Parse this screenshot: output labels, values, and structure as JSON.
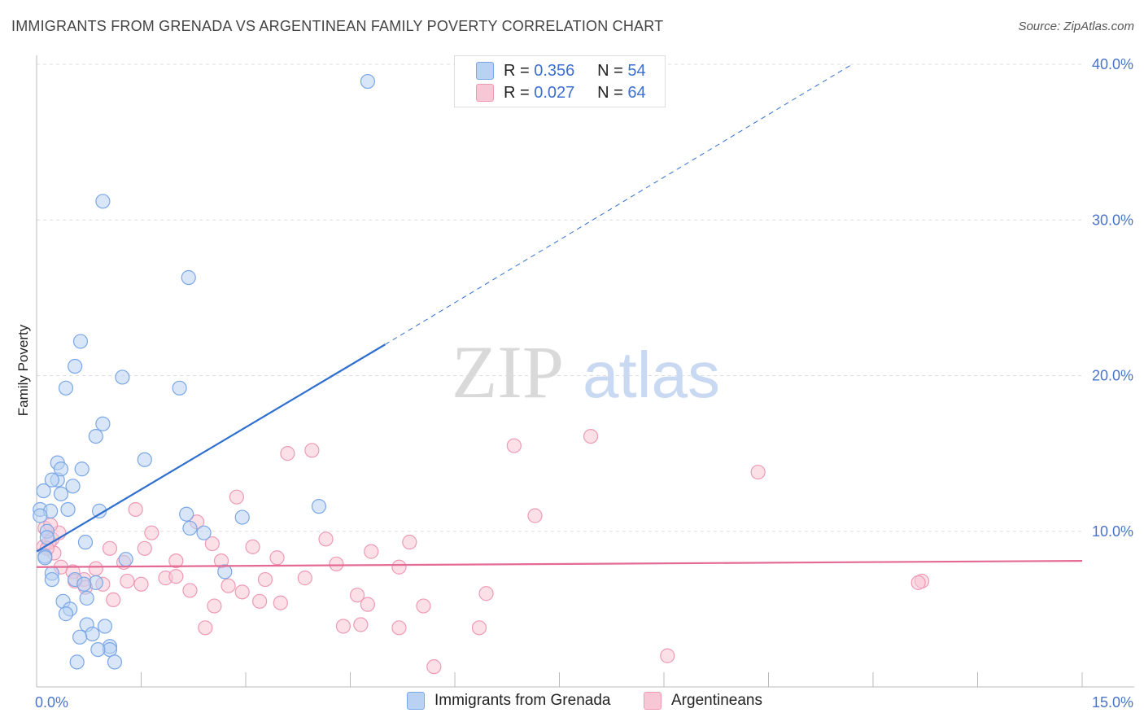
{
  "title": "IMMIGRANTS FROM GRENADA VS ARGENTINEAN FAMILY POVERTY CORRELATION CHART",
  "source": "Source: ZipAtlas.com",
  "watermark": {
    "zip": "ZIP",
    "atlas": "atlas"
  },
  "legend": {
    "r_label": "R =",
    "n_label": "N =",
    "series": [
      {
        "name": "Immigrants from Grenada",
        "r": "0.356",
        "n": "54",
        "color": "#7aa7e6",
        "fill": "#b9d1f2",
        "line": "#2e6fcf"
      },
      {
        "name": "Argentineans",
        "r": "0.027",
        "n": "64",
        "color": "#ee9ab5",
        "fill": "#f7c7d6",
        "line": "#e46a94"
      }
    ]
  },
  "chart_data": {
    "type": "scatter",
    "title": "IMMIGRANTS FROM GRENADA VS ARGENTINEAN FAMILY POVERTY CORRELATION CHART",
    "xlabel": "",
    "ylabel": "Family Poverty",
    "xlim": [
      0,
      15
    ],
    "ylim": [
      0,
      40
    ],
    "x_tick_labels": [
      "0.0%",
      "15.0%"
    ],
    "y_ticks": [
      10,
      20,
      30,
      40
    ],
    "y_tick_labels": [
      "10.0%",
      "20.0%",
      "30.0%",
      "40.0%"
    ],
    "grid": true,
    "series": [
      {
        "name": "Immigrants from Grenada",
        "points": [
          [
            4.75,
            38.9
          ],
          [
            0.95,
            31.2
          ],
          [
            2.18,
            26.3
          ],
          [
            0.63,
            22.2
          ],
          [
            0.55,
            20.6
          ],
          [
            1.23,
            19.9
          ],
          [
            0.42,
            19.2
          ],
          [
            2.05,
            19.2
          ],
          [
            0.95,
            16.9
          ],
          [
            0.85,
            16.1
          ],
          [
            1.55,
            14.6
          ],
          [
            0.3,
            14.4
          ],
          [
            0.3,
            13.3
          ],
          [
            0.65,
            14.0
          ],
          [
            0.35,
            14.0
          ],
          [
            0.22,
            13.3
          ],
          [
            0.52,
            12.9
          ],
          [
            0.1,
            12.6
          ],
          [
            0.35,
            12.4
          ],
          [
            0.05,
            11.4
          ],
          [
            0.2,
            11.3
          ],
          [
            0.45,
            11.4
          ],
          [
            0.9,
            11.3
          ],
          [
            2.15,
            11.1
          ],
          [
            2.95,
            10.9
          ],
          [
            4.05,
            11.6
          ],
          [
            0.05,
            11.0
          ],
          [
            2.2,
            10.2
          ],
          [
            2.4,
            9.9
          ],
          [
            0.15,
            10.0
          ],
          [
            0.7,
            9.3
          ],
          [
            0.15,
            9.6
          ],
          [
            0.12,
            8.4
          ],
          [
            1.28,
            8.2
          ],
          [
            0.22,
            7.3
          ],
          [
            2.7,
            7.4
          ],
          [
            0.22,
            6.9
          ],
          [
            0.55,
            6.9
          ],
          [
            0.85,
            6.7
          ],
          [
            0.68,
            6.6
          ],
          [
            0.72,
            5.7
          ],
          [
            0.38,
            5.5
          ],
          [
            0.48,
            5.0
          ],
          [
            0.42,
            4.7
          ],
          [
            0.72,
            4.0
          ],
          [
            0.98,
            3.9
          ],
          [
            0.8,
            3.4
          ],
          [
            0.62,
            3.2
          ],
          [
            1.05,
            2.6
          ],
          [
            1.05,
            2.4
          ],
          [
            0.88,
            2.4
          ],
          [
            0.58,
            1.6
          ],
          [
            1.12,
            1.6
          ],
          [
            0.12,
            8.3
          ]
        ]
      },
      {
        "name": "Argentineans",
        "points": [
          [
            7.95,
            16.1
          ],
          [
            6.85,
            15.5
          ],
          [
            3.95,
            15.2
          ],
          [
            3.6,
            15.0
          ],
          [
            10.35,
            13.8
          ],
          [
            2.87,
            12.2
          ],
          [
            1.42,
            11.4
          ],
          [
            7.15,
            11.0
          ],
          [
            2.3,
            10.6
          ],
          [
            0.12,
            10.2
          ],
          [
            0.22,
            9.5
          ],
          [
            1.65,
            9.9
          ],
          [
            4.15,
            9.5
          ],
          [
            5.35,
            9.3
          ],
          [
            2.52,
            9.2
          ],
          [
            3.1,
            9.0
          ],
          [
            0.1,
            9.0
          ],
          [
            1.55,
            8.9
          ],
          [
            1.05,
            8.9
          ],
          [
            4.8,
            8.7
          ],
          [
            3.45,
            8.3
          ],
          [
            1.25,
            8.0
          ],
          [
            2.0,
            8.1
          ],
          [
            2.65,
            8.1
          ],
          [
            4.3,
            7.9
          ],
          [
            5.2,
            7.7
          ],
          [
            0.35,
            7.7
          ],
          [
            0.52,
            7.4
          ],
          [
            0.85,
            7.6
          ],
          [
            1.85,
            7.0
          ],
          [
            2.0,
            7.1
          ],
          [
            0.55,
            6.8
          ],
          [
            0.68,
            6.9
          ],
          [
            3.85,
            7.0
          ],
          [
            3.28,
            6.9
          ],
          [
            1.3,
            6.8
          ],
          [
            1.5,
            6.6
          ],
          [
            0.95,
            6.6
          ],
          [
            0.7,
            6.4
          ],
          [
            2.75,
            6.5
          ],
          [
            12.7,
            6.8
          ],
          [
            12.65,
            6.7
          ],
          [
            2.2,
            6.2
          ],
          [
            2.95,
            6.1
          ],
          [
            4.6,
            5.9
          ],
          [
            6.45,
            6.0
          ],
          [
            1.1,
            5.6
          ],
          [
            3.2,
            5.5
          ],
          [
            3.5,
            5.4
          ],
          [
            4.75,
            5.3
          ],
          [
            5.55,
            5.2
          ],
          [
            2.55,
            5.2
          ],
          [
            0.32,
            9.9
          ],
          [
            2.42,
            3.8
          ],
          [
            4.4,
            3.9
          ],
          [
            4.65,
            4.0
          ],
          [
            5.2,
            3.8
          ],
          [
            6.35,
            3.8
          ],
          [
            9.05,
            2.0
          ],
          [
            5.7,
            1.3
          ],
          [
            0.2,
            10.4
          ],
          [
            0.25,
            8.6
          ],
          [
            0.18,
            9.3
          ],
          [
            0.15,
            8.9
          ]
        ]
      }
    ],
    "trend_lines": [
      {
        "series": "Immigrants from Grenada",
        "style": "solid",
        "x": [
          0.0,
          5.0
        ],
        "y": [
          8.7,
          22.0
        ]
      },
      {
        "series": "Immigrants from Grenada",
        "style": "dashed",
        "x": [
          5.0,
          11.7
        ],
        "y": [
          22.0,
          40.0
        ]
      },
      {
        "series": "Argentineans",
        "style": "solid",
        "x": [
          0.0,
          15.0
        ],
        "y": [
          7.7,
          8.1
        ]
      }
    ]
  }
}
